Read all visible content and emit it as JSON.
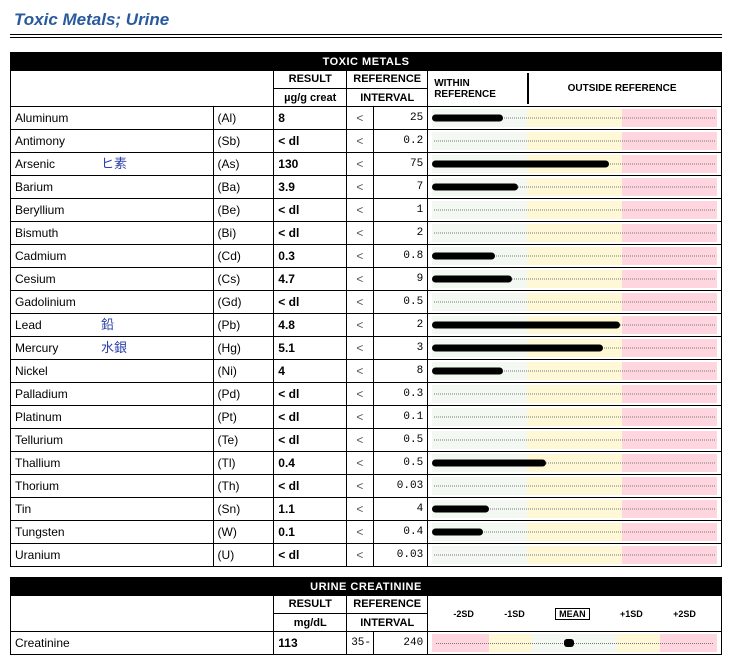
{
  "page_title": "Toxic Metals; Urine",
  "toxic_header": "TOXIC METALS",
  "creat_header": "URINE CREATININE",
  "cols": {
    "result": "RESULT",
    "result_unit": "µg/g creat",
    "result_unit_cre": "mg/dL",
    "reference": "REFERENCE",
    "reference_sub": "INTERVAL",
    "within": "WITHIN",
    "within_sub": "REFERENCE",
    "outside": "OUTSIDE REFERENCE"
  },
  "lt": "<",
  "colors": {
    "zone_in": "#f3f8f3",
    "zone_mid": "#fff8d6",
    "zone_out": "#ffd6df",
    "bar": "#000000",
    "title": "#2a5a9e",
    "handwriting": "#2a3fa8"
  },
  "rows": [
    {
      "name": "Aluminum",
      "sym": "(Al)",
      "result": "8",
      "ref": "25",
      "bar_pct": 25,
      "hand": ""
    },
    {
      "name": "Antimony",
      "sym": "(Sb)",
      "result": "< dl",
      "ref": "0.2",
      "bar_pct": 0,
      "hand": ""
    },
    {
      "name": "Arsenic",
      "sym": "(As)",
      "result": "130",
      "ref": "75",
      "bar_pct": 62,
      "hand": "ヒ素"
    },
    {
      "name": "Barium",
      "sym": "(Ba)",
      "result": "3.9",
      "ref": "7",
      "bar_pct": 30,
      "hand": ""
    },
    {
      "name": "Beryllium",
      "sym": "(Be)",
      "result": "< dl",
      "ref": "1",
      "bar_pct": 0,
      "hand": ""
    },
    {
      "name": "Bismuth",
      "sym": "(Bi)",
      "result": "< dl",
      "ref": "2",
      "bar_pct": 0,
      "hand": ""
    },
    {
      "name": "Cadmium",
      "sym": "(Cd)",
      "result": "0.3",
      "ref": "0.8",
      "bar_pct": 22,
      "hand": ""
    },
    {
      "name": "Cesium",
      "sym": "(Cs)",
      "result": "4.7",
      "ref": "9",
      "bar_pct": 28,
      "hand": ""
    },
    {
      "name": "Gadolinium",
      "sym": "(Gd)",
      "result": "< dl",
      "ref": "0.5",
      "bar_pct": 0,
      "hand": ""
    },
    {
      "name": "Lead",
      "sym": "(Pb)",
      "result": "4.8",
      "ref": "2",
      "bar_pct": 66,
      "hand": "鉛"
    },
    {
      "name": "Mercury",
      "sym": "(Hg)",
      "result": "5.1",
      "ref": "3",
      "bar_pct": 60,
      "hand": "水銀"
    },
    {
      "name": "Nickel",
      "sym": "(Ni)",
      "result": "4",
      "ref": "8",
      "bar_pct": 25,
      "hand": ""
    },
    {
      "name": "Palladium",
      "sym": "(Pd)",
      "result": "< dl",
      "ref": "0.3",
      "bar_pct": 0,
      "hand": ""
    },
    {
      "name": "Platinum",
      "sym": "(Pt)",
      "result": "< dl",
      "ref": "0.1",
      "bar_pct": 0,
      "hand": ""
    },
    {
      "name": "Tellurium",
      "sym": "(Te)",
      "result": "< dl",
      "ref": "0.5",
      "bar_pct": 0,
      "hand": ""
    },
    {
      "name": "Thallium",
      "sym": "(Tl)",
      "result": "0.4",
      "ref": "0.5",
      "bar_pct": 40,
      "hand": ""
    },
    {
      "name": "Thorium",
      "sym": "(Th)",
      "result": "< dl",
      "ref": "0.03",
      "bar_pct": 0,
      "hand": ""
    },
    {
      "name": "Tin",
      "sym": "(Sn)",
      "result": "1.1",
      "ref": "4",
      "bar_pct": 20,
      "hand": ""
    },
    {
      "name": "Tungsten",
      "sym": "(W)",
      "result": "0.1",
      "ref": "0.4",
      "bar_pct": 18,
      "hand": ""
    },
    {
      "name": "Uranium",
      "sym": "(U)",
      "result": "< dl",
      "ref": "0.03",
      "bar_pct": 0,
      "hand": ""
    }
  ],
  "sd_labels": {
    "m2": "-2SD",
    "m1": "-1SD",
    "mean": "MEAN",
    "p1": "+1SD",
    "p2": "+2SD"
  },
  "creatinine": {
    "name": "Creatinine",
    "result": "113",
    "ref_low": "35-",
    "ref_high": "240",
    "mark_pct": 48
  }
}
